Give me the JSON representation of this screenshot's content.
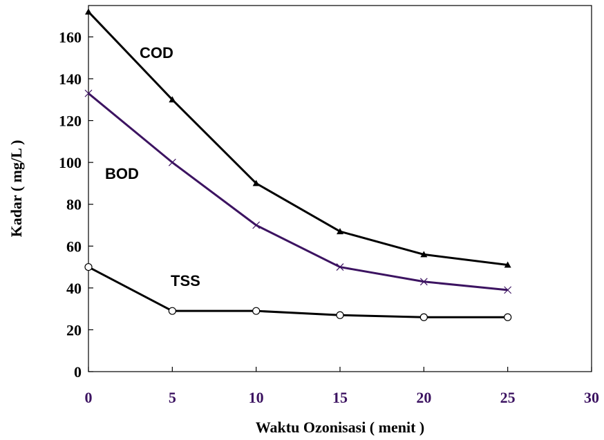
{
  "chart_data": {
    "type": "line",
    "xlabel": "Waktu Ozonisasi ( menit )",
    "ylabel": "Kadar ( mg/L )",
    "xlim": [
      0,
      30
    ],
    "ylim": [
      0,
      175
    ],
    "x_ticks": [
      0,
      5,
      10,
      15,
      20,
      25,
      30
    ],
    "y_ticks": [
      0,
      20,
      40,
      60,
      80,
      100,
      120,
      140,
      160
    ],
    "x": [
      0,
      5,
      10,
      15,
      20,
      25
    ],
    "grid": false,
    "series": [
      {
        "name": "COD",
        "values": [
          172,
          130,
          90,
          67,
          56,
          51
        ],
        "marker": "triangle",
        "color": "#000000"
      },
      {
        "name": "BOD",
        "values": [
          133,
          100,
          70,
          50,
          43,
          39
        ],
        "marker": "x",
        "color": "#3c1361"
      },
      {
        "name": "TSS",
        "values": [
          50,
          29,
          29,
          27,
          26,
          26
        ],
        "marker": "circle",
        "color": "#000000"
      }
    ]
  }
}
